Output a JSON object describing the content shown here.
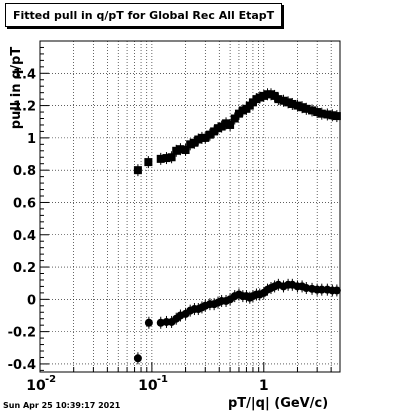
{
  "header": {
    "title": "Fitted pull in q/pT for Global Rec All EtapT"
  },
  "footer": {
    "timestamp": "Sun Apr 25 10:39:17 2021"
  },
  "chart_data": {
    "type": "scatter",
    "title": "Fitted pull in q/pT for Global Rec All EtapT",
    "xlabel": "pT/|q| (GeV/c)",
    "ylabel": "pull in q/pT",
    "xscale": "log",
    "xlim": [
      0.01,
      4.8
    ],
    "ylim": [
      -0.45,
      1.6
    ],
    "grid": true,
    "x_ticks": [
      {
        "v": 0.01,
        "label": "10"
      },
      {
        "v": 0.1,
        "label": "10"
      },
      {
        "v": 1,
        "label": "1"
      }
    ],
    "x_tick_exponent": "-2",
    "x_tick_exponent2": "-1",
    "y_ticks": [
      {
        "v": -0.4,
        "label": "-0.4"
      },
      {
        "v": -0.2,
        "label": "-0.2"
      },
      {
        "v": 0,
        "label": "0"
      },
      {
        "v": 0.2,
        "label": "0.2"
      },
      {
        "v": 0.4,
        "label": "0.4"
      },
      {
        "v": 0.6,
        "label": "0.6"
      },
      {
        "v": 0.8,
        "label": "0.8"
      },
      {
        "v": 1,
        "label": "1"
      },
      {
        "v": 1.2,
        "label": "1.2"
      },
      {
        "v": 1.4,
        "label": "1.4"
      }
    ],
    "series": [
      {
        "marker": "square",
        "x": [
          0.075,
          0.093,
          0.12,
          0.135,
          0.15,
          0.165,
          0.18,
          0.2,
          0.22,
          0.24,
          0.26,
          0.28,
          0.3,
          0.33,
          0.36,
          0.39,
          0.42,
          0.46,
          0.5,
          0.55,
          0.6,
          0.65,
          0.7,
          0.75,
          0.8,
          0.86,
          0.92,
          1.0,
          1.08,
          1.16,
          1.25,
          1.35,
          1.5,
          1.65,
          1.8,
          2.0,
          2.2,
          2.4,
          2.7,
          3.0,
          3.3,
          3.7,
          4.1,
          4.5
        ],
        "y": [
          0.8,
          0.85,
          0.87,
          0.875,
          0.88,
          0.92,
          0.93,
          0.925,
          0.96,
          0.97,
          0.99,
          1.0,
          1.0,
          1.02,
          1.04,
          1.06,
          1.07,
          1.09,
          1.08,
          1.12,
          1.15,
          1.17,
          1.18,
          1.2,
          1.22,
          1.24,
          1.25,
          1.26,
          1.27,
          1.27,
          1.26,
          1.24,
          1.23,
          1.22,
          1.21,
          1.2,
          1.19,
          1.18,
          1.17,
          1.16,
          1.15,
          1.145,
          1.14,
          1.135
        ]
      },
      {
        "marker": "circle",
        "x": [
          0.075,
          0.094,
          0.12,
          0.135,
          0.15,
          0.165,
          0.18,
          0.2,
          0.22,
          0.24,
          0.26,
          0.28,
          0.3,
          0.33,
          0.36,
          0.39,
          0.42,
          0.46,
          0.5,
          0.55,
          0.6,
          0.65,
          0.7,
          0.75,
          0.8,
          0.86,
          0.92,
          1.0,
          1.08,
          1.16,
          1.25,
          1.35,
          1.5,
          1.65,
          1.8,
          2.0,
          2.2,
          2.4,
          2.7,
          3.0,
          3.3,
          3.7,
          4.1,
          4.5
        ],
        "y": [
          -0.365,
          -0.145,
          -0.145,
          -0.14,
          -0.14,
          -0.12,
          -0.1,
          -0.09,
          -0.07,
          -0.06,
          -0.06,
          -0.05,
          -0.04,
          -0.03,
          -0.03,
          -0.02,
          -0.01,
          -0.01,
          0.0,
          0.02,
          0.03,
          0.02,
          0.02,
          0.01,
          0.02,
          0.03,
          0.03,
          0.04,
          0.06,
          0.07,
          0.08,
          0.09,
          0.08,
          0.09,
          0.09,
          0.08,
          0.08,
          0.07,
          0.065,
          0.06,
          0.06,
          0.06,
          0.055,
          0.055
        ]
      }
    ]
  }
}
